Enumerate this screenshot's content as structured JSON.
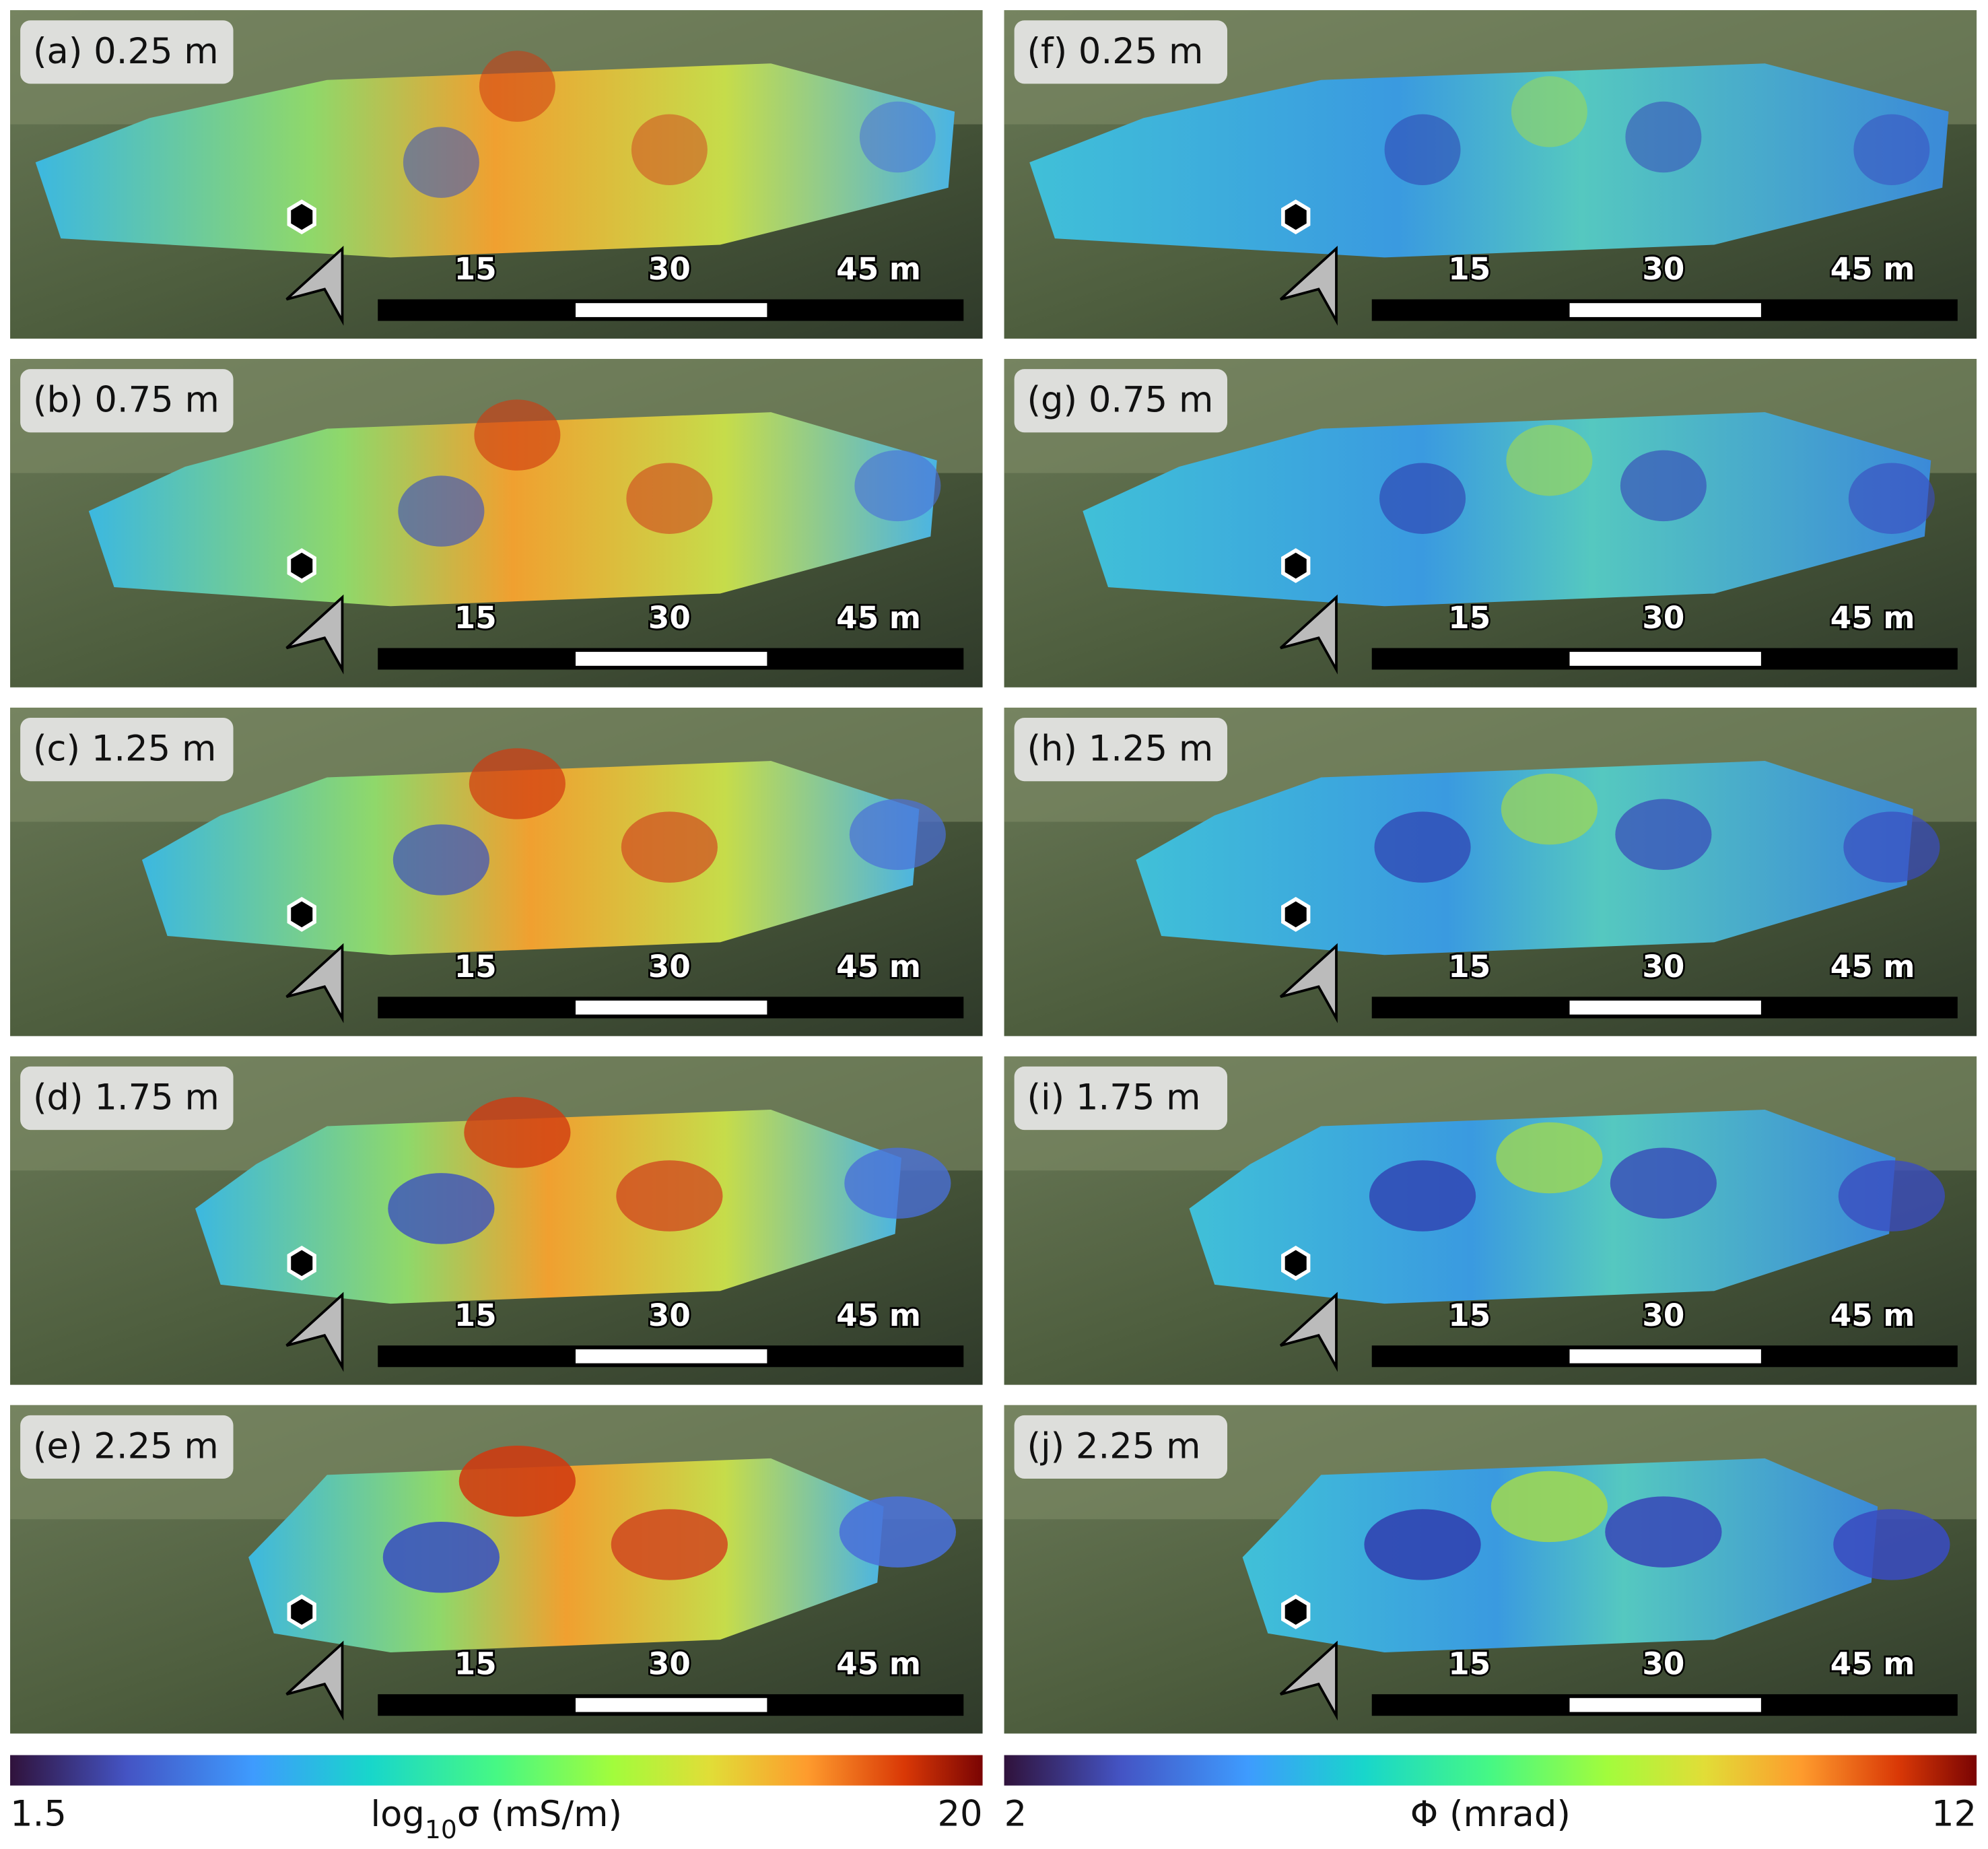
{
  "panels": [
    {
      "label": "(a) 0.25 m"
    },
    {
      "label": "(b) 0.75 m"
    },
    {
      "label": "(c) 1.25 m"
    },
    {
      "label": "(d) 1.75 m"
    },
    {
      "label": "(e) 2.25 m"
    },
    {
      "label": "(f) 0.25 m"
    },
    {
      "label": "(g) 0.75 m"
    },
    {
      "label": "(h) 1.25 m"
    },
    {
      "label": "(i) 1.75 m"
    },
    {
      "label": "(j) 2.25 m"
    }
  ],
  "scale_bar": {
    "labels": [
      "15",
      "30",
      "45 m"
    ]
  },
  "colorbars": [
    {
      "label_parts": [
        "log",
        "10",
        "σ (mS/m)"
      ],
      "min": 1.5,
      "max": 20
    },
    {
      "label_parts": [
        "Φ (mrad)"
      ],
      "min": 2,
      "max": 12
    }
  ]
}
